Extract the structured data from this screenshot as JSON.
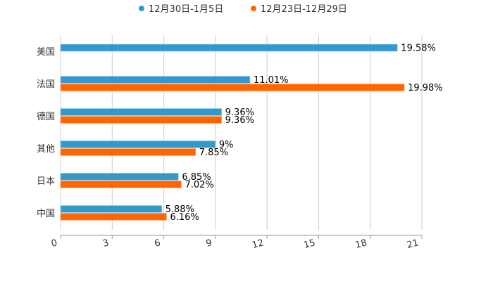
{
  "chart_data": {
    "type": "bar",
    "orientation": "horizontal",
    "categories": [
      "美国",
      "法国",
      "德国",
      "其他",
      "日本",
      "中国"
    ],
    "series": [
      {
        "name": "12月30日-1月5日",
        "color": "#3399cc",
        "values": [
          19.58,
          11.01,
          9.36,
          9,
          6.85,
          5.88
        ],
        "labels": [
          "19.58%",
          "11.01%",
          "9.36%",
          "9%",
          "6.85%",
          "5.88%"
        ]
      },
      {
        "name": "12月23日-12月29日",
        "color": "#ff6600",
        "values": [
          null,
          19.98,
          9.36,
          7.85,
          7.02,
          6.16
        ],
        "labels": [
          null,
          "19.98%",
          "9.36%",
          "7.85%",
          "7.02%",
          "6.16%"
        ]
      }
    ],
    "xlim": [
      0,
      21
    ],
    "xticks": [
      0,
      3,
      6,
      9,
      12,
      15,
      18,
      21
    ],
    "grid": true,
    "legend": "top-center",
    "title": "",
    "xlabel": "",
    "ylabel": ""
  }
}
